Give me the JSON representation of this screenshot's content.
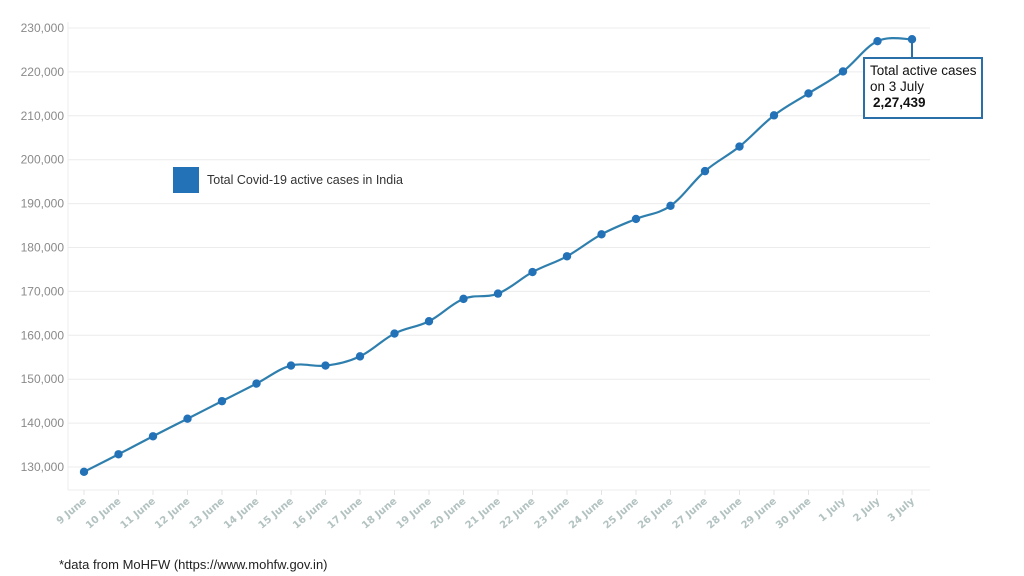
{
  "chart_data": {
    "type": "line",
    "title": "",
    "xlabel": "",
    "ylabel": "",
    "ylim": [
      125000,
      230000
    ],
    "yticks": [
      130000,
      140000,
      150000,
      160000,
      170000,
      180000,
      190000,
      200000,
      210000,
      220000,
      230000
    ],
    "ytick_labels": [
      "130,000",
      "140,000",
      "150,000",
      "160,000",
      "170,000",
      "180,000",
      "190,000",
      "200,000",
      "210,000",
      "220,000",
      "230,000"
    ],
    "grid": true,
    "legend_position": "upper-left-inside",
    "categories": [
      "9 June",
      "10 June",
      "11 June",
      "12 June",
      "13 June",
      "14 June",
      "15 June",
      "16 June",
      "17 June",
      "18 June",
      "19 June",
      "20 June",
      "21 June",
      "22 June",
      "23 June",
      "24 June",
      "25 June",
      "26 June",
      "27 June",
      "28 June",
      "29 June",
      "30 June",
      "1 July",
      "2 July",
      "3 July"
    ],
    "series": [
      {
        "name": "Total Covid-19 active cases in India",
        "color": "#2372b8",
        "values": [
          128900,
          132900,
          137000,
          141000,
          145000,
          149000,
          153100,
          153100,
          155200,
          160400,
          163200,
          168300,
          169500,
          174400,
          178000,
          183000,
          186500,
          189500,
          197400,
          203000,
          210100,
          215100,
          220100,
          227000,
          227439
        ]
      }
    ],
    "annotations": [
      {
        "target": "3 July",
        "text": "Total active cases on 3 July",
        "value": "2,27,439"
      }
    ]
  },
  "legend": {
    "label": "Total Covid-19 active cases in India",
    "color": "#2372b8"
  },
  "callout": {
    "line1": "Total active cases",
    "line2": "on 3 July",
    "value": "2,27,439"
  },
  "footnote": "*data from MoHFW (https://www.mohfw.gov.in)"
}
